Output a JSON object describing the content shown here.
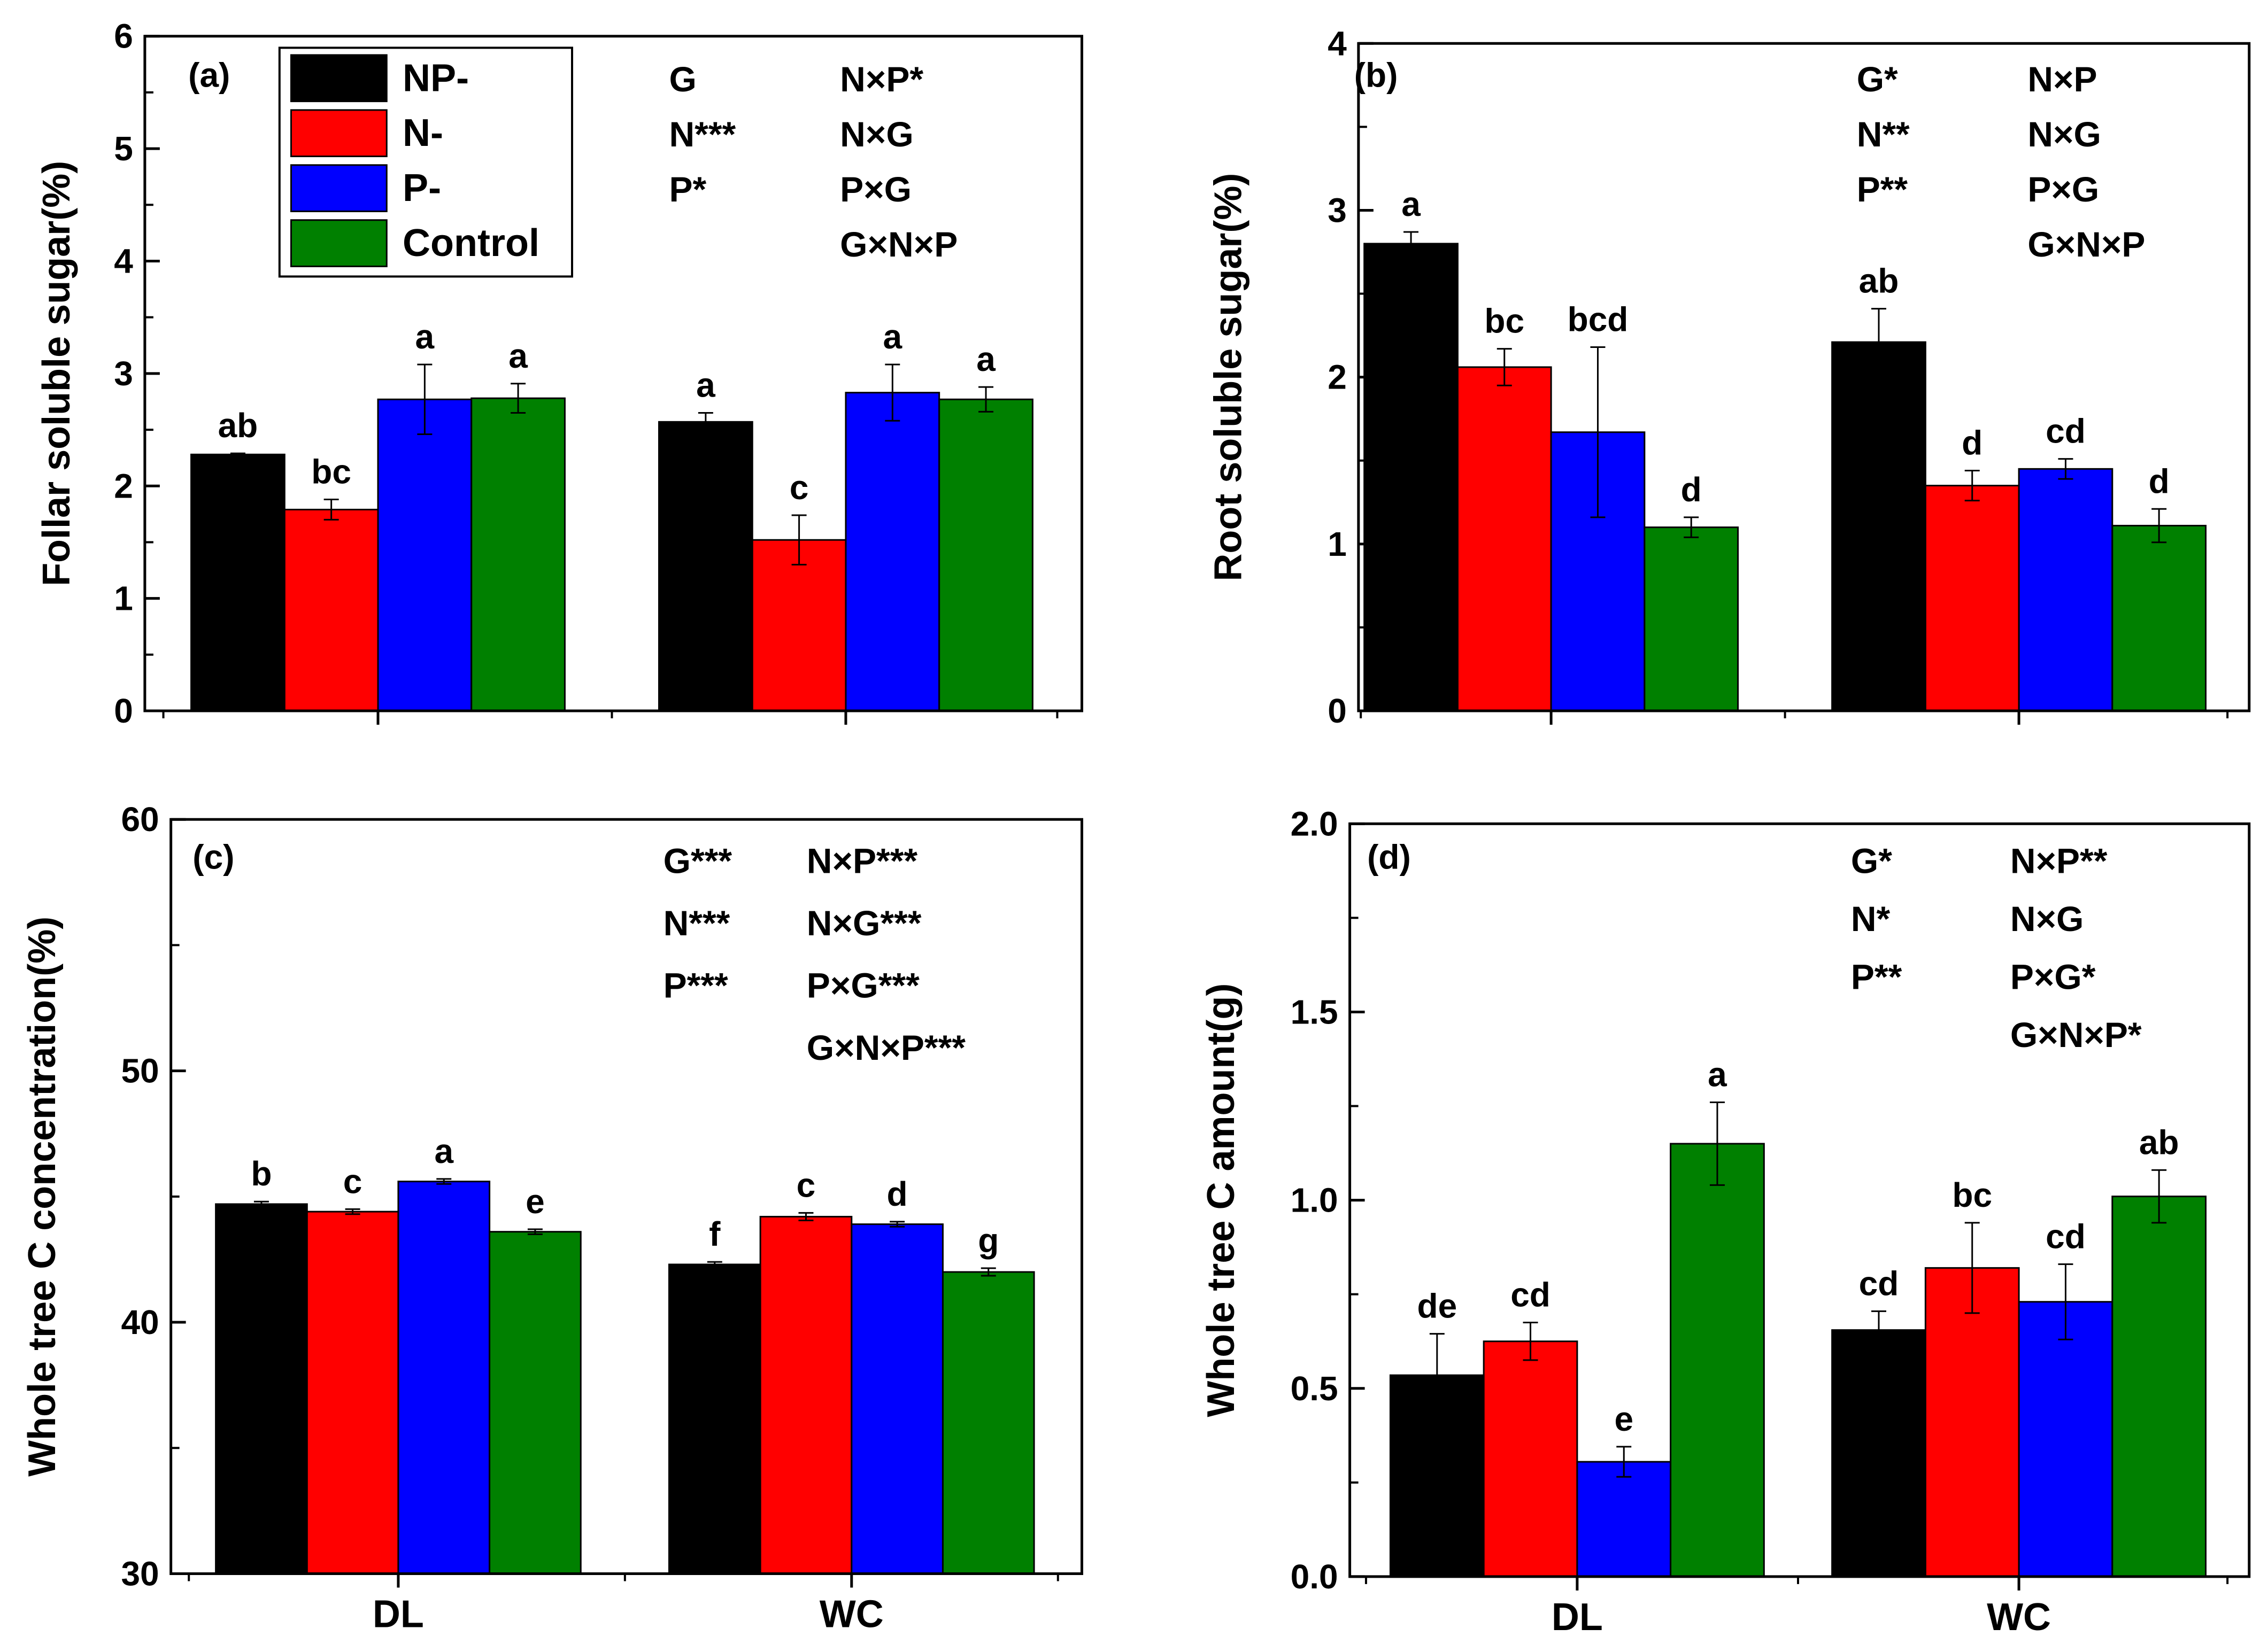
{
  "colors": {
    "NP-": "#000000",
    "N-": "#ff0000",
    "P-": "#0000ff",
    "Control": "#008000"
  },
  "legend": [
    "NP-",
    "N-",
    "P-",
    "Control"
  ],
  "chart_data": [
    {
      "type": "bar",
      "panel": "(a)",
      "ylabel": "Follar soluble sugar(%)",
      "ylim": [
        0,
        6
      ],
      "yticks": [
        0,
        1,
        2,
        3,
        4,
        5,
        6
      ],
      "categories": [
        "DL",
        "WC"
      ],
      "category_labels_shown": false,
      "series": [
        {
          "name": "NP-",
          "values": [
            2.28,
            2.57
          ],
          "errors": [
            0.01,
            0.08
          ],
          "letters": [
            "ab",
            "a"
          ]
        },
        {
          "name": "N-",
          "values": [
            1.79,
            1.52
          ],
          "errors": [
            0.09,
            0.22
          ],
          "letters": [
            "bc",
            "c"
          ]
        },
        {
          "name": "P-",
          "values": [
            2.77,
            2.83
          ],
          "errors": [
            0.31,
            0.25
          ],
          "letters": [
            "a",
            "a"
          ]
        },
        {
          "name": "Control",
          "values": [
            2.78,
            2.77
          ],
          "errors": [
            0.13,
            0.11
          ],
          "letters": [
            "a",
            "a"
          ]
        }
      ],
      "stats": [
        [
          "G",
          "N×P*"
        ],
        [
          "N***",
          "N×G"
        ],
        [
          "P*",
          "P×G"
        ],
        [
          "",
          "G×N×P"
        ]
      ]
    },
    {
      "type": "bar",
      "panel": "(b)",
      "ylabel": "Root soluble sugar(%)",
      "ylim": [
        0,
        4
      ],
      "yticks": [
        0,
        1,
        2,
        3,
        4
      ],
      "categories": [
        "DL",
        "WC"
      ],
      "category_labels_shown": false,
      "series": [
        {
          "name": "NP-",
          "values": [
            2.8,
            2.21
          ],
          "errors": [
            0.07,
            0.2
          ],
          "letters": [
            "a",
            "ab"
          ]
        },
        {
          "name": "N-",
          "values": [
            2.06,
            1.35
          ],
          "errors": [
            0.11,
            0.09
          ],
          "letters": [
            "bc",
            "d"
          ]
        },
        {
          "name": "P-",
          "values": [
            1.67,
            1.45
          ],
          "errors": [
            0.51,
            0.06
          ],
          "letters": [
            "bcd",
            "cd"
          ]
        },
        {
          "name": "Control",
          "values": [
            1.1,
            1.11
          ],
          "errors": [
            0.06,
            0.1
          ],
          "letters": [
            "d",
            "d"
          ]
        }
      ],
      "stats": [
        [
          "G*",
          "N×P"
        ],
        [
          "N**",
          "N×G"
        ],
        [
          "P**",
          "P×G"
        ],
        [
          "",
          "G×N×P"
        ]
      ]
    },
    {
      "type": "bar",
      "panel": "(c)",
      "ylabel": "Whole tree C concentration(%)",
      "ylim": [
        30,
        60
      ],
      "yticks": [
        30,
        40,
        50,
        60
      ],
      "categories": [
        "DL",
        "WC"
      ],
      "category_labels_shown": true,
      "series": [
        {
          "name": "NP-",
          "values": [
            44.7,
            42.3
          ],
          "errors": [
            0.1,
            0.1
          ],
          "letters": [
            "b",
            "f"
          ]
        },
        {
          "name": "N-",
          "values": [
            44.4,
            44.2
          ],
          "errors": [
            0.1,
            0.15
          ],
          "letters": [
            "c",
            "c"
          ]
        },
        {
          "name": "P-",
          "values": [
            45.6,
            43.9
          ],
          "errors": [
            0.1,
            0.1
          ],
          "letters": [
            "a",
            "d"
          ]
        },
        {
          "name": "Control",
          "values": [
            43.6,
            42.0
          ],
          "errors": [
            0.1,
            0.15
          ],
          "letters": [
            "e",
            "g"
          ]
        }
      ],
      "stats": [
        [
          "G***",
          "N×P***"
        ],
        [
          "N***",
          "N×G***"
        ],
        [
          "P***",
          "P×G***"
        ],
        [
          "",
          "G×N×P***"
        ]
      ]
    },
    {
      "type": "bar",
      "panel": "(d)",
      "ylabel": "Whole tree C amount(g)",
      "ylim": [
        0,
        2
      ],
      "yticks": [
        0,
        0.5,
        1.0,
        1.5,
        2.0
      ],
      "ytick_labels": [
        "0.0",
        "0.5",
        "1.0",
        "1.5",
        "2.0"
      ],
      "categories": [
        "DL",
        "WC"
      ],
      "category_labels_shown": true,
      "series": [
        {
          "name": "NP-",
          "values": [
            0.535,
            0.655
          ],
          "errors": [
            0.11,
            0.05
          ],
          "letters": [
            "de",
            "cd"
          ]
        },
        {
          "name": "N-",
          "values": [
            0.625,
            0.82
          ],
          "errors": [
            0.05,
            0.12
          ],
          "letters": [
            "cd",
            "bc"
          ]
        },
        {
          "name": "P-",
          "values": [
            0.305,
            0.73
          ],
          "errors": [
            0.04,
            0.1
          ],
          "letters": [
            "e",
            "cd"
          ]
        },
        {
          "name": "Control",
          "values": [
            1.15,
            1.01
          ],
          "errors": [
            0.11,
            0.07
          ],
          "letters": [
            "a",
            "ab"
          ]
        }
      ],
      "stats": [
        [
          "G*",
          "N×P**"
        ],
        [
          "N*",
          "N×G"
        ],
        [
          "P**",
          "P×G*"
        ],
        [
          "",
          "G×N×P*"
        ]
      ]
    }
  ]
}
